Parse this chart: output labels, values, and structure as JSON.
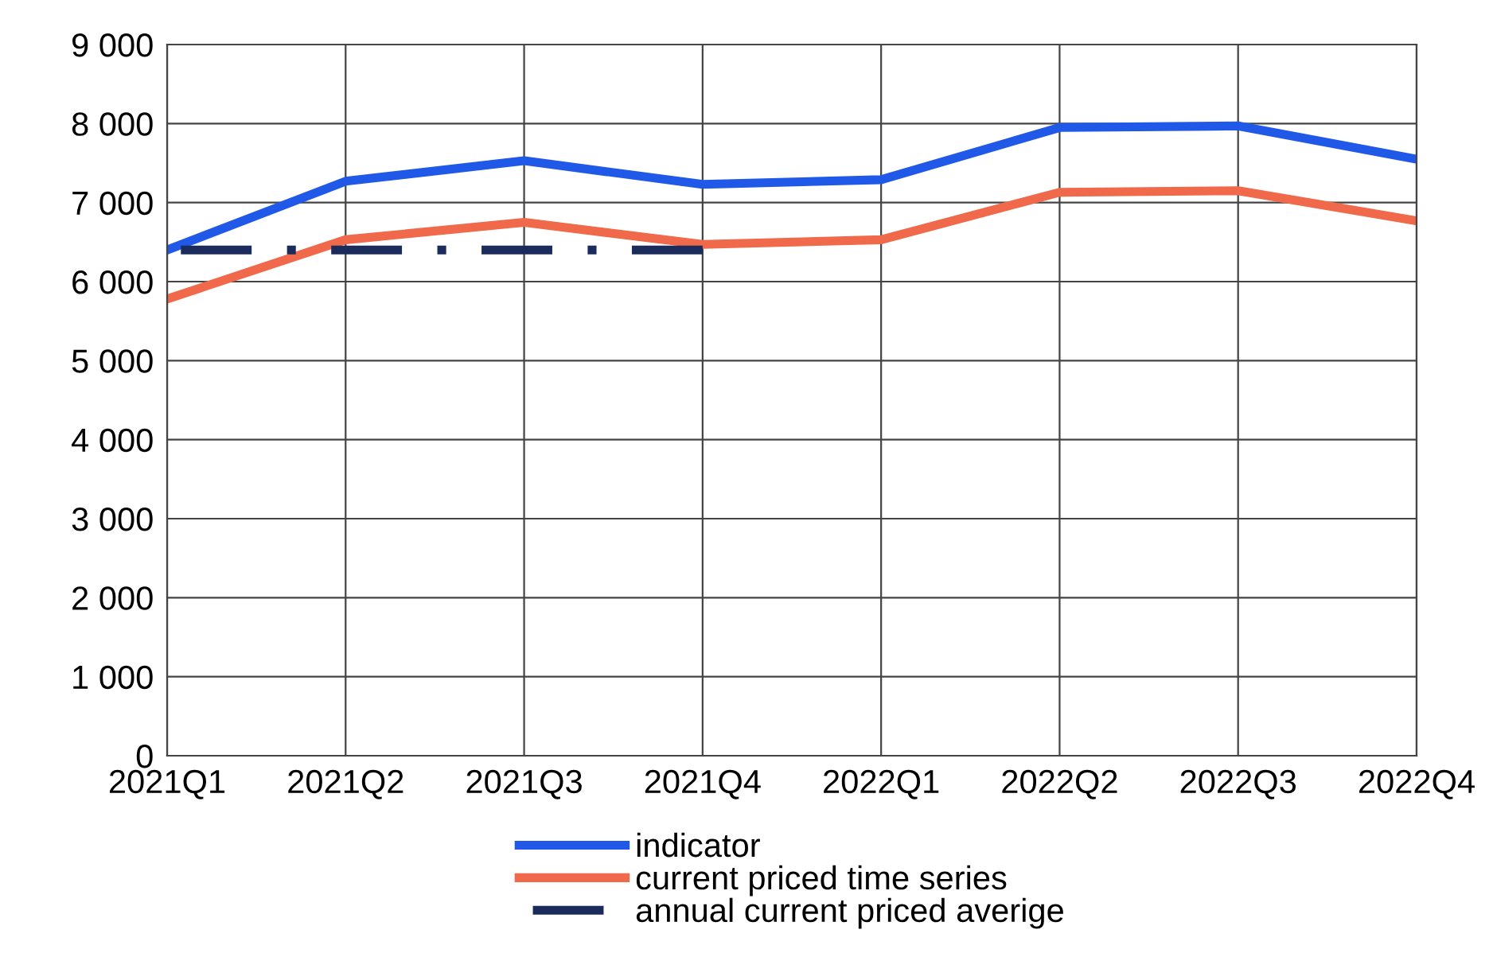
{
  "chart_data": {
    "type": "line",
    "categories": [
      "2021Q1",
      "2021Q2",
      "2021Q3",
      "2021Q4",
      "2022Q1",
      "2022Q2",
      "2022Q3",
      "2022Q4"
    ],
    "series": [
      {
        "name": "indicator",
        "color": "#2058e8",
        "values": [
          6400,
          7270,
          7530,
          7230,
          7290,
          7950,
          7970,
          7550
        ]
      },
      {
        "name": "current priced time series",
        "color": "#f0694a",
        "values": [
          5780,
          6530,
          6750,
          6470,
          6530,
          7130,
          7150,
          6770
        ]
      },
      {
        "name": "annual current priced averige",
        "color": "#1b2b5b",
        "line_style": "dashdot",
        "values": [
          6400,
          6400,
          6400,
          6400,
          null,
          null,
          null,
          null
        ]
      }
    ],
    "ylim": [
      0,
      9000
    ],
    "yticks": [
      0,
      {
        "value": 1000,
        "label": "1 000"
      },
      {
        "value": 2000,
        "label": "2 000"
      },
      {
        "value": 3000,
        "label": "3 000"
      },
      {
        "value": 4000,
        "label": "4 000"
      },
      {
        "value": 5000,
        "label": "5 000"
      },
      {
        "value": 6000,
        "label": "6 000"
      },
      {
        "value": 7000,
        "label": "7 000"
      },
      {
        "value": 8000,
        "label": "8 000"
      },
      {
        "value": 9000,
        "label": "9 000"
      }
    ],
    "grid": true,
    "legend": "bottom",
    "marker": "none"
  }
}
